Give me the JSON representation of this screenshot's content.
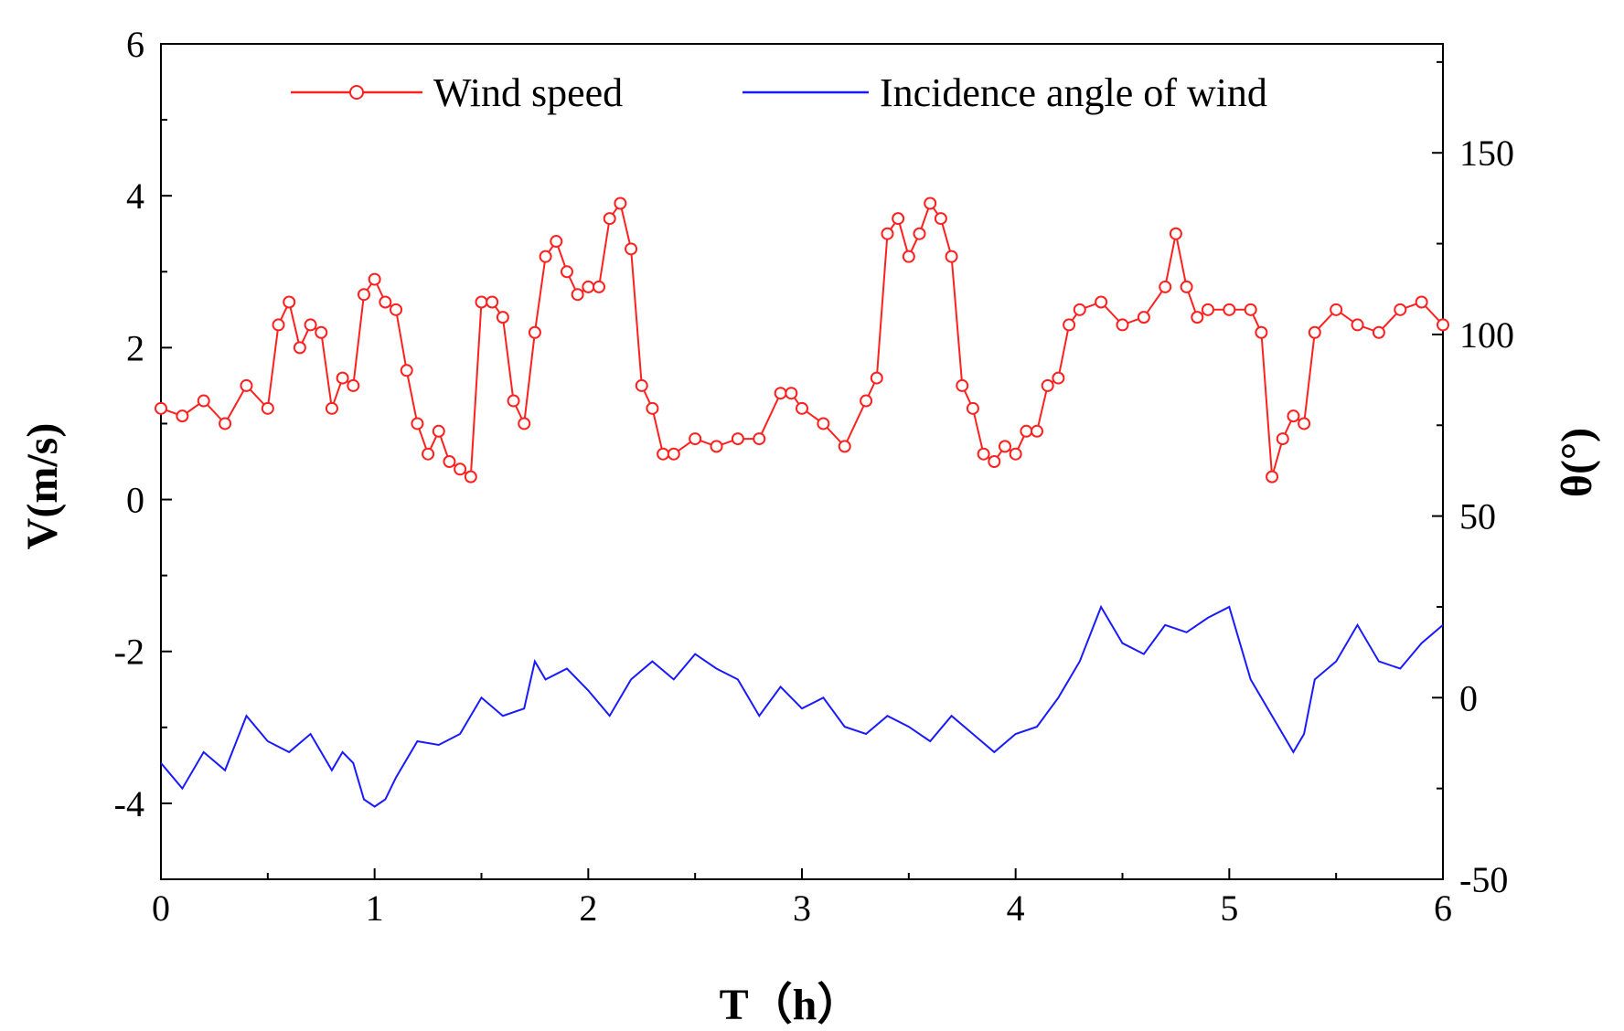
{
  "chart_data": {
    "type": "line",
    "xlabel": "T（h）",
    "ylabel_left": "V(m/s)",
    "ylabel_right": "θ(°)",
    "xlim": [
      0,
      6
    ],
    "ylim_left": [
      -5,
      6
    ],
    "ylim_right": [
      -50,
      180
    ],
    "xticks": [
      "0",
      "1",
      "2",
      "3",
      "4",
      "5",
      "6"
    ],
    "yticks_left": [
      "-4",
      "-2",
      "0",
      "2",
      "4",
      "6"
    ],
    "yticks_right": [
      "-50",
      "0",
      "50",
      "100",
      "150"
    ],
    "legend_position": "top",
    "series": [
      {
        "name": "Wind speed",
        "axis": "left",
        "color": "#ff2020",
        "marker": "open-circle",
        "x": [
          0,
          0.1,
          0.2,
          0.3,
          0.4,
          0.5,
          0.55,
          0.6,
          0.65,
          0.7,
          0.75,
          0.8,
          0.85,
          0.9,
          0.95,
          1.0,
          1.05,
          1.1,
          1.15,
          1.2,
          1.25,
          1.3,
          1.35,
          1.4,
          1.45,
          1.5,
          1.55,
          1.6,
          1.65,
          1.7,
          1.75,
          1.8,
          1.85,
          1.9,
          1.95,
          2.0,
          2.05,
          2.1,
          2.15,
          2.2,
          2.25,
          2.3,
          2.35,
          2.4,
          2.5,
          2.6,
          2.7,
          2.8,
          2.9,
          2.95,
          3.0,
          3.1,
          3.2,
          3.3,
          3.35,
          3.4,
          3.45,
          3.5,
          3.55,
          3.6,
          3.65,
          3.7,
          3.75,
          3.8,
          3.85,
          3.9,
          3.95,
          4.0,
          4.05,
          4.1,
          4.15,
          4.2,
          4.25,
          4.3,
          4.4,
          4.5,
          4.6,
          4.7,
          4.75,
          4.8,
          4.85,
          4.9,
          5.0,
          5.1,
          5.15,
          5.2,
          5.25,
          5.3,
          5.35,
          5.4,
          5.5,
          5.6,
          5.7,
          5.8,
          5.9,
          6.0
        ],
        "values": [
          1.2,
          1.1,
          1.3,
          1.0,
          1.5,
          1.2,
          2.3,
          2.6,
          2.0,
          2.3,
          2.2,
          1.2,
          1.6,
          1.5,
          2.7,
          2.9,
          2.6,
          2.5,
          1.7,
          1.0,
          0.6,
          0.9,
          0.5,
          0.4,
          0.3,
          2.6,
          2.6,
          2.4,
          1.3,
          1.0,
          2.2,
          3.2,
          3.4,
          3.0,
          2.7,
          2.8,
          2.8,
          3.7,
          3.9,
          3.3,
          1.5,
          1.2,
          0.6,
          0.6,
          0.8,
          0.7,
          0.8,
          0.8,
          1.4,
          1.4,
          1.2,
          1.0,
          0.7,
          1.3,
          1.6,
          3.5,
          3.7,
          3.2,
          3.5,
          3.9,
          3.7,
          3.2,
          1.5,
          1.2,
          0.6,
          0.5,
          0.7,
          0.6,
          0.9,
          0.9,
          1.5,
          1.6,
          2.3,
          2.5,
          2.6,
          2.3,
          2.4,
          2.8,
          3.5,
          2.8,
          2.4,
          2.5,
          2.5,
          2.5,
          2.2,
          0.3,
          0.8,
          1.1,
          1.0,
          2.2,
          2.5,
          2.3,
          2.2,
          2.5,
          2.6,
          2.3
        ]
      },
      {
        "name": "Incidence angle of wind",
        "axis": "right",
        "color": "#1a1aff",
        "marker": "none",
        "x": [
          0,
          0.1,
          0.2,
          0.3,
          0.4,
          0.5,
          0.6,
          0.7,
          0.8,
          0.85,
          0.9,
          0.95,
          1.0,
          1.05,
          1.1,
          1.2,
          1.3,
          1.4,
          1.5,
          1.6,
          1.7,
          1.75,
          1.8,
          1.9,
          2.0,
          2.1,
          2.2,
          2.3,
          2.4,
          2.5,
          2.6,
          2.7,
          2.8,
          2.9,
          3.0,
          3.1,
          3.2,
          3.3,
          3.4,
          3.5,
          3.6,
          3.7,
          3.8,
          3.9,
          4.0,
          4.1,
          4.2,
          4.3,
          4.4,
          4.5,
          4.6,
          4.7,
          4.8,
          4.9,
          5.0,
          5.1,
          5.2,
          5.3,
          5.35,
          5.4,
          5.5,
          5.6,
          5.7,
          5.8,
          5.9,
          6.0
        ],
        "values": [
          -18,
          -25,
          -15,
          -20,
          -5,
          -12,
          -15,
          -10,
          -20,
          -15,
          -18,
          -28,
          -30,
          -28,
          -22,
          -12,
          -13,
          -10,
          0,
          -5,
          -3,
          10,
          5,
          8,
          2,
          -5,
          5,
          10,
          5,
          12,
          8,
          5,
          -5,
          3,
          -3,
          0,
          -8,
          -10,
          -5,
          -8,
          -12,
          -5,
          -10,
          -15,
          -10,
          -8,
          0,
          10,
          25,
          15,
          12,
          20,
          18,
          22,
          25,
          5,
          -5,
          -15,
          -10,
          5,
          10,
          20,
          10,
          8,
          15,
          20
        ]
      }
    ]
  }
}
